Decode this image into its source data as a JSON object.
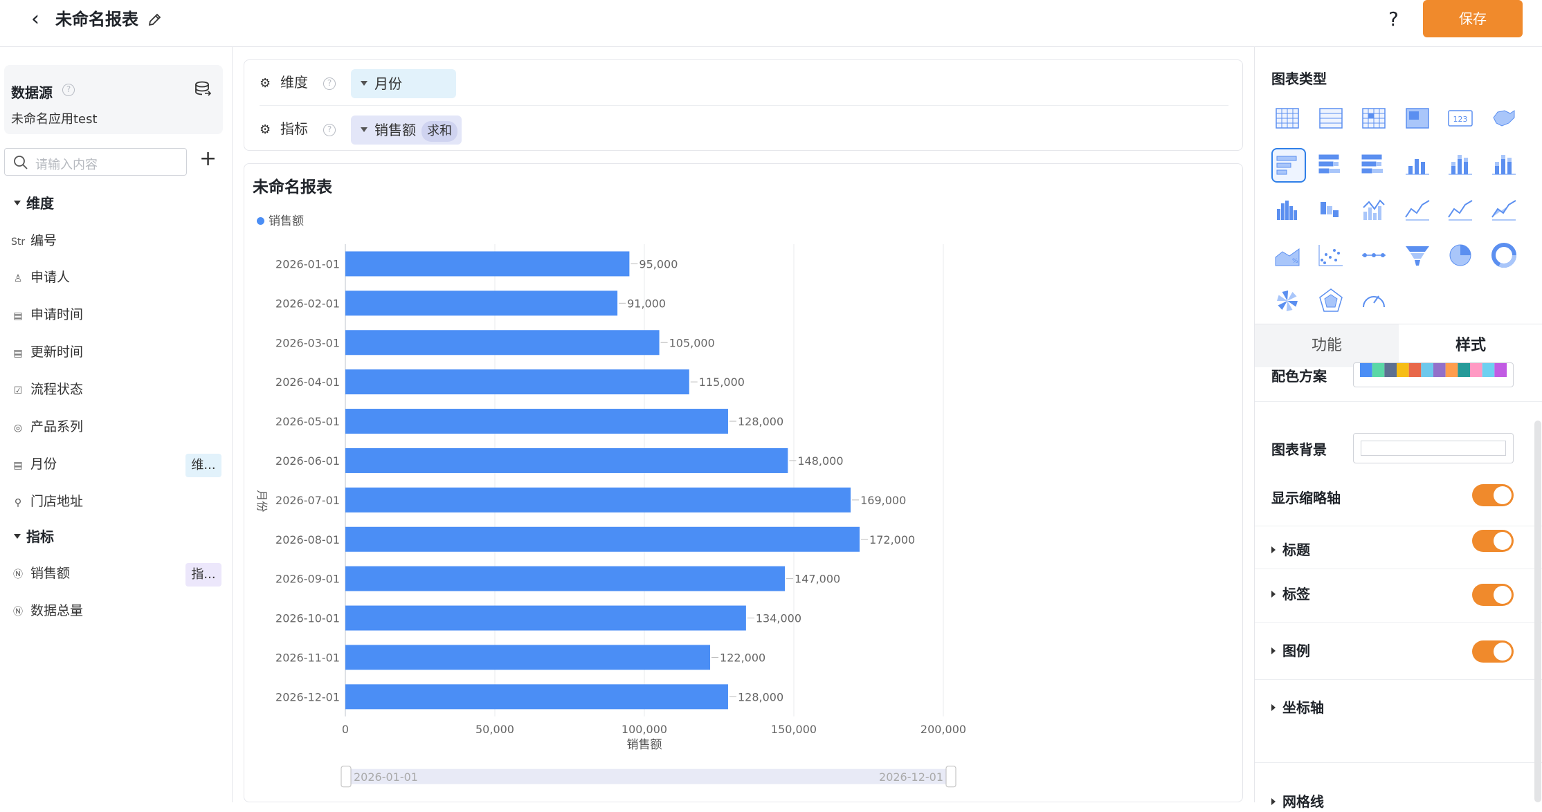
{
  "header": {
    "title": "未命名报表",
    "help": "?",
    "save_label": "保存"
  },
  "sidebar": {
    "datasource_title": "数据源",
    "datasource_name": "未命名应用test",
    "search_placeholder": "请输入内容",
    "dimension_title": "维度",
    "metric_title": "指标",
    "dimension_fields": [
      {
        "label": "编号",
        "icon": "Str"
      },
      {
        "label": "申请人",
        "icon": "user-icon"
      },
      {
        "label": "申请时间",
        "icon": "calendar-icon"
      },
      {
        "label": "更新时间",
        "icon": "calendar-icon"
      },
      {
        "label": "流程状态",
        "icon": "checkbox-icon"
      },
      {
        "label": "产品系列",
        "icon": "target-icon"
      },
      {
        "label": "月份",
        "icon": "calendar-icon",
        "tag": "维..."
      },
      {
        "label": "门店地址",
        "icon": "location-icon"
      }
    ],
    "metric_fields": [
      {
        "label": "销售额",
        "icon": "number-icon",
        "tag": "指..."
      },
      {
        "label": "数据总量",
        "icon": "number-icon"
      }
    ]
  },
  "config": {
    "dimension_label": "维度",
    "dimension_chip": "月份",
    "metric_label": "指标",
    "metric_chip": "销售额",
    "metric_agg": "求和"
  },
  "chart": {
    "title": "未命名报表",
    "legend": "销售额",
    "ylabel": "月份",
    "xlabel": "销售额",
    "range_start": "2026-01-01",
    "range_end": "2026-12-01"
  },
  "chart_data": {
    "type": "bar",
    "orientation": "horizontal",
    "title": "未命名报表",
    "xlabel": "销售额",
    "ylabel": "月份",
    "xlim": [
      0,
      200000
    ],
    "xticks": [
      "0",
      "50,000",
      "100,000",
      "150,000",
      "200,000"
    ],
    "categories": [
      "2026-01-01",
      "2026-02-01",
      "2026-03-01",
      "2026-04-01",
      "2026-05-01",
      "2026-06-01",
      "2026-07-01",
      "2026-08-01",
      "2026-09-01",
      "2026-10-01",
      "2026-11-01",
      "2026-12-01"
    ],
    "series": [
      {
        "name": "销售额",
        "values": [
          95000,
          91000,
          105000,
          115000,
          128000,
          148000,
          169000,
          172000,
          147000,
          134000,
          122000,
          128000
        ],
        "color": "#4b8ef5"
      }
    ],
    "data_labels": [
      "95,000",
      "91,000",
      "105,000",
      "115,000",
      "128,000",
      "148,000",
      "169,000",
      "172,000",
      "147,000",
      "134,000",
      "122,000",
      "128,000"
    ],
    "grid": true,
    "legend_position": "top-left"
  },
  "panel": {
    "chart_types_title": "图表类型",
    "tab_function": "功能",
    "tab_style": "样式",
    "props": {
      "palette": "配色方案",
      "background": "图表背景",
      "thumbnail_axis": "显示缩略轴",
      "title": "标题",
      "label": "标签",
      "legend": "图例",
      "axis": "坐标轴",
      "gridline": "网格线"
    },
    "palette_colors": [
      "#4b8ef5",
      "#5ad8a6",
      "#5d7092",
      "#f6bd16",
      "#e8684a",
      "#6dc8ec",
      "#9270ca",
      "#ff9d4d",
      "#269a99",
      "#ff99c3",
      "#6dd0f0",
      "#c15be3"
    ],
    "toggles": {
      "thumbnail_axis": true,
      "title": true,
      "label": true,
      "legend": true
    }
  }
}
